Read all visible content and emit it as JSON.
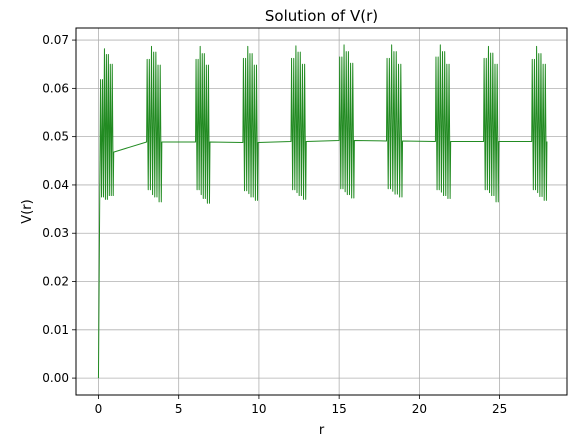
{
  "chart_data": {
    "type": "line",
    "title": "Solution of V(r)",
    "xlabel": "r",
    "ylabel": "V(r)",
    "xlim": [
      -1.4,
      29.2
    ],
    "ylim": [
      -0.0035,
      0.0725
    ],
    "x_ticks": [
      0,
      5,
      10,
      15,
      20,
      25
    ],
    "x_tick_labels": [
      "0",
      "5",
      "10",
      "15",
      "20",
      "25"
    ],
    "y_ticks": [
      0.0,
      0.01,
      0.02,
      0.03,
      0.04,
      0.05,
      0.06,
      0.07
    ],
    "y_tick_labels": [
      "0.00",
      "0.01",
      "0.02",
      "0.03",
      "0.04",
      "0.05",
      "0.06",
      "0.07"
    ],
    "grid": true,
    "legend": "none",
    "series_color": "#228b22",
    "initial_rise": [
      [
        0.0,
        0.0
      ],
      [
        0.1,
        0.0475
      ]
    ],
    "bursts": [
      {
        "start": 0.1,
        "end": 0.95,
        "lows": [
          0.0375,
          0.037,
          0.0378
        ],
        "highs": [
          0.0618,
          0.0682,
          0.067,
          0.065
        ]
      },
      {
        "start": 3.0,
        "end": 3.95,
        "lows": [
          0.039,
          0.038,
          0.0375,
          0.0365
        ],
        "highs": [
          0.066,
          0.0687,
          0.0675,
          0.0648
        ]
      },
      {
        "start": 6.05,
        "end": 6.95,
        "lows": [
          0.039,
          0.038,
          0.0372,
          0.0362
        ],
        "highs": [
          0.066,
          0.0687,
          0.0672,
          0.0648
        ]
      },
      {
        "start": 9.0,
        "end": 9.95,
        "lows": [
          0.0388,
          0.0382,
          0.0375,
          0.0368
        ],
        "highs": [
          0.0662,
          0.0687,
          0.0672,
          0.0648
        ]
      },
      {
        "start": 12.0,
        "end": 12.95,
        "lows": [
          0.039,
          0.0384,
          0.0378,
          0.037
        ],
        "highs": [
          0.0662,
          0.0688,
          0.0675,
          0.065
        ]
      },
      {
        "start": 15.0,
        "end": 15.95,
        "lows": [
          0.0392,
          0.0386,
          0.038,
          0.0373
        ],
        "highs": [
          0.0665,
          0.069,
          0.0676,
          0.0652
        ]
      },
      {
        "start": 17.95,
        "end": 18.95,
        "lows": [
          0.0392,
          0.0387,
          0.0381,
          0.0375
        ],
        "highs": [
          0.0662,
          0.069,
          0.0676,
          0.065
        ]
      },
      {
        "start": 21.0,
        "end": 21.95,
        "lows": [
          0.039,
          0.0385,
          0.0378,
          0.0372
        ],
        "highs": [
          0.0665,
          0.069,
          0.0676,
          0.065
        ]
      },
      {
        "start": 24.0,
        "end": 24.95,
        "lows": [
          0.039,
          0.0384,
          0.0378,
          0.0365
        ],
        "highs": [
          0.0662,
          0.0687,
          0.0673,
          0.065
        ]
      },
      {
        "start": 27.0,
        "end": 27.95,
        "lows": [
          0.039,
          0.0384,
          0.0376,
          0.0368
        ],
        "highs": [
          0.066,
          0.0687,
          0.0672,
          0.065
        ]
      }
    ]
  }
}
